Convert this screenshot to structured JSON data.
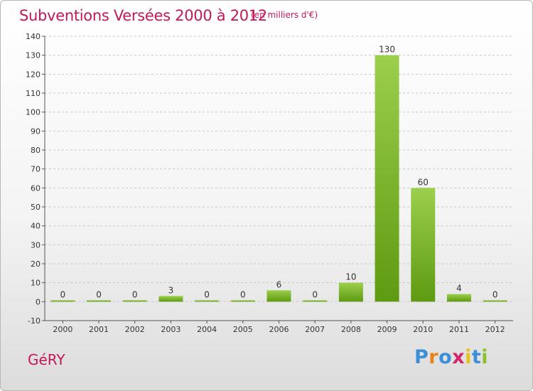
{
  "header": {
    "title": "Subventions Versées 2000 à 2012",
    "unit": "(en milliers d'€)"
  },
  "footer": {
    "commune": "GéRY",
    "logo": [
      "P",
      "r",
      "o",
      "x",
      "i",
      "t",
      "i"
    ]
  },
  "colors": {
    "title": "#c2185b",
    "bar_top": "#9ccf4c",
    "bar_bottom": "#5e9a12",
    "logo": [
      "#3a8fd6",
      "#e8831c",
      "#3a8fd6",
      "#d3256b",
      "#e8c21c",
      "#3a8fd6",
      "#8bbf2c"
    ]
  },
  "chart_data": {
    "type": "bar",
    "categories": [
      "2000",
      "2001",
      "2002",
      "2003",
      "2004",
      "2005",
      "2006",
      "2007",
      "2008",
      "2009",
      "2010",
      "2011",
      "2012"
    ],
    "values": [
      0,
      0,
      0,
      3,
      0,
      0,
      6,
      0,
      10,
      130,
      60,
      4,
      0
    ],
    "title": "Subventions Versées 2000 à 2012",
    "subtitle": "(en milliers d'€)",
    "xlabel": "",
    "ylabel": "",
    "ylim": [
      -10,
      140
    ],
    "yticks": [
      -10,
      0,
      10,
      20,
      30,
      40,
      50,
      60,
      70,
      80,
      90,
      100,
      110,
      120,
      130,
      140
    ],
    "grid": "horizontal dashed",
    "legend": "none"
  }
}
